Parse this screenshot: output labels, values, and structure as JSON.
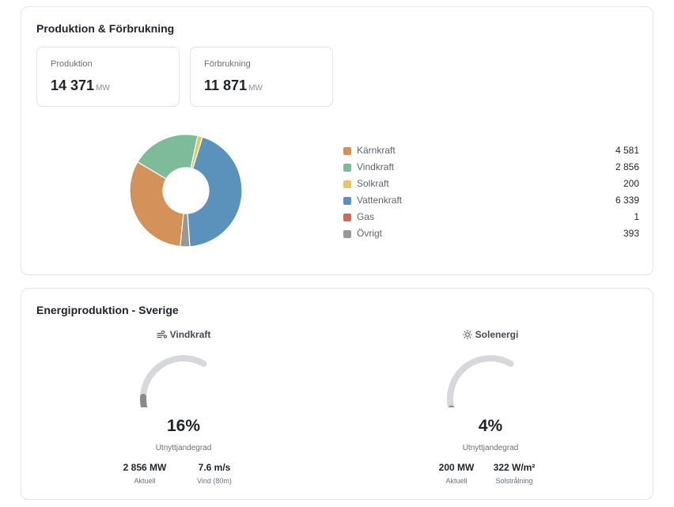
{
  "production_card": {
    "title": "Produktion & Förbrukning",
    "production": {
      "label": "Produktion",
      "value": "14 371",
      "unit": "MW"
    },
    "consumption": {
      "label": "Förbrukning",
      "value": "11 871",
      "unit": "MW"
    }
  },
  "chart_data": {
    "type": "pie",
    "title": "",
    "categories": [
      "Kärnkraft",
      "Vindkraft",
      "Solkraft",
      "Vattenkraft",
      "Gas",
      "Övrigt"
    ],
    "values": [
      4581,
      2856,
      200,
      6339,
      1,
      393
    ],
    "value_labels": [
      "4 581",
      "2 856",
      "200",
      "6 339",
      "1",
      "393"
    ],
    "colors": [
      "#d4925a",
      "#7dbb9b",
      "#e2c76a",
      "#5b92bb",
      "#cc6b5f",
      "#999894"
    ],
    "start_category": "Vattenkraft",
    "legend_position": "right",
    "donut": true
  },
  "energy_card": {
    "title": "Energiproduktion - Sverige",
    "wind": {
      "title": "Vindkraft",
      "icon": "wind-icon",
      "percent": 16,
      "percent_label": "16%",
      "sub_label": "Utnyttjandegrad",
      "metrics": [
        {
          "value": "2 856 MW",
          "label": "Aktuell"
        },
        {
          "value": "7.6 m/s",
          "label": "Vind (80m)"
        }
      ]
    },
    "solar": {
      "title": "Solenergi",
      "icon": "sun-icon",
      "percent": 4,
      "percent_label": "4%",
      "sub_label": "Utnyttjandegrad",
      "metrics": [
        {
          "value": "200 MW",
          "label": "Aktuell"
        },
        {
          "value": "322 W/m²",
          "label": "Solstrålning"
        }
      ]
    }
  },
  "colors": {
    "gauge_track": "#d7d8db",
    "gauge_fill": "#8a8a8a"
  }
}
